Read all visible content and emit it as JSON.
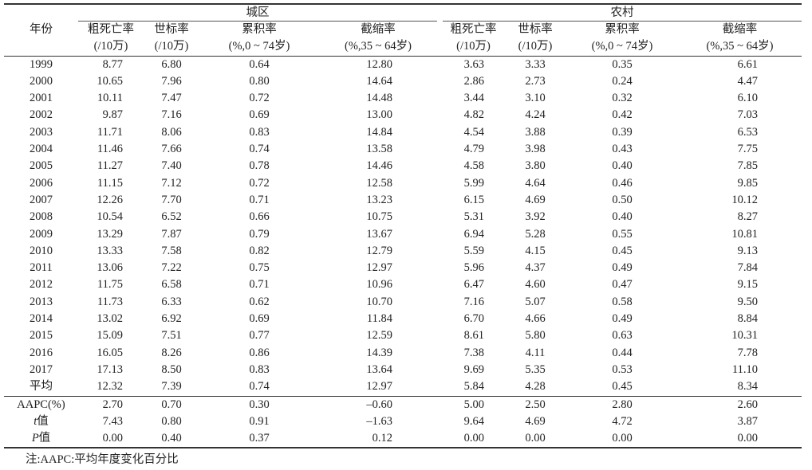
{
  "header": {
    "year": "年份",
    "urban": "城区",
    "rural": "农村",
    "columns": [
      {
        "name": "粗死亡率",
        "unit": "(/10万)"
      },
      {
        "name": "世标率",
        "unit": "(/10万)"
      },
      {
        "name": "累积率",
        "unit": "(%,0 ~ 74岁)"
      },
      {
        "name": "截缩率",
        "unit": "(%,35 ~ 64岁)"
      }
    ]
  },
  "rows": [
    [
      "1999",
      "8.77",
      "6.80",
      "0.64",
      "12.80",
      "3.63",
      "3.33",
      "0.35",
      "6.61"
    ],
    [
      "2000",
      "10.65",
      "7.96",
      "0.80",
      "14.64",
      "2.86",
      "2.73",
      "0.24",
      "4.47"
    ],
    [
      "2001",
      "10.11",
      "7.47",
      "0.72",
      "14.48",
      "3.44",
      "3.10",
      "0.32",
      "6.10"
    ],
    [
      "2002",
      "9.87",
      "7.16",
      "0.69",
      "13.00",
      "4.82",
      "4.24",
      "0.42",
      "7.03"
    ],
    [
      "2003",
      "11.71",
      "8.06",
      "0.83",
      "14.84",
      "4.54",
      "3.88",
      "0.39",
      "6.53"
    ],
    [
      "2004",
      "11.46",
      "7.66",
      "0.74",
      "13.58",
      "4.79",
      "3.98",
      "0.43",
      "7.75"
    ],
    [
      "2005",
      "11.27",
      "7.40",
      "0.78",
      "14.46",
      "4.58",
      "3.80",
      "0.40",
      "7.85"
    ],
    [
      "2006",
      "11.15",
      "7.12",
      "0.72",
      "12.58",
      "5.99",
      "4.64",
      "0.46",
      "9.85"
    ],
    [
      "2007",
      "12.26",
      "7.70",
      "0.71",
      "13.23",
      "6.15",
      "4.69",
      "0.50",
      "10.12"
    ],
    [
      "2008",
      "10.54",
      "6.52",
      "0.66",
      "10.75",
      "5.31",
      "3.92",
      "0.40",
      "8.27"
    ],
    [
      "2009",
      "13.29",
      "7.87",
      "0.79",
      "13.67",
      "6.94",
      "5.28",
      "0.55",
      "10.81"
    ],
    [
      "2010",
      "13.33",
      "7.58",
      "0.82",
      "12.79",
      "5.59",
      "4.15",
      "0.45",
      "9.13"
    ],
    [
      "2011",
      "13.06",
      "7.22",
      "0.75",
      "12.97",
      "5.96",
      "4.37",
      "0.49",
      "7.84"
    ],
    [
      "2012",
      "11.75",
      "6.58",
      "0.71",
      "10.96",
      "6.47",
      "4.60",
      "0.47",
      "9.15"
    ],
    [
      "2013",
      "11.73",
      "6.33",
      "0.62",
      "10.70",
      "7.16",
      "5.07",
      "0.58",
      "9.50"
    ],
    [
      "2014",
      "13.02",
      "6.92",
      "0.69",
      "11.84",
      "6.70",
      "4.66",
      "0.49",
      "8.84"
    ],
    [
      "2015",
      "15.09",
      "7.51",
      "0.77",
      "12.59",
      "8.61",
      "5.80",
      "0.63",
      "10.31"
    ],
    [
      "2016",
      "16.05",
      "8.26",
      "0.86",
      "14.39",
      "7.38",
      "4.11",
      "0.44",
      "7.78"
    ],
    [
      "2017",
      "17.13",
      "8.50",
      "0.83",
      "13.64",
      "9.69",
      "5.35",
      "0.53",
      "11.10"
    ],
    [
      "平均",
      "12.32",
      "7.39",
      "0.74",
      "12.97",
      "5.84",
      "4.28",
      "0.45",
      "8.34"
    ]
  ],
  "stats": [
    {
      "label": "AAPC(%)",
      "italic": "",
      "suffix": "",
      "values": [
        "2.70",
        "0.70",
        "0.30",
        "–0.60",
        "5.00",
        "2.50",
        "2.80",
        "2.60"
      ]
    },
    {
      "label": "",
      "italic": "t",
      "suffix": "值",
      "values": [
        "7.43",
        "0.80",
        "0.91",
        "–1.63",
        "9.64",
        "4.69",
        "4.72",
        "3.87"
      ]
    },
    {
      "label": "",
      "italic": "P",
      "suffix": "值",
      "values": [
        "0.00",
        "0.40",
        "0.37",
        "0.12",
        "0.00",
        "0.00",
        "0.00",
        "0.00"
      ]
    }
  ],
  "note": "注:AAPC:平均年度变化百分比"
}
